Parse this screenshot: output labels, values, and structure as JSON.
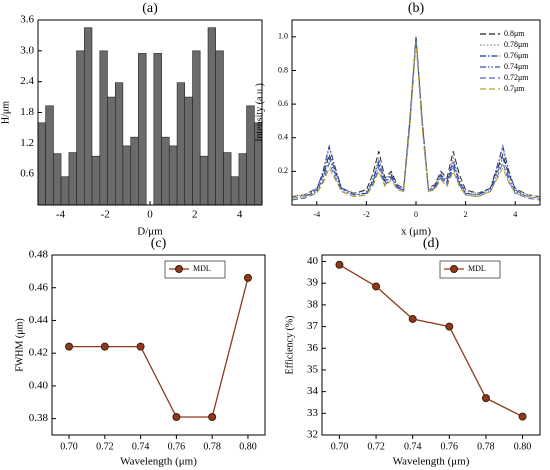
{
  "chart_data": [
    {
      "type": "histogram",
      "title": "(a)",
      "x_label": "D/μm",
      "y_label": "H/μm",
      "color": "#6b6b6b",
      "bins": [
        -5,
        -4.66,
        -4.31,
        -3.97,
        -3.62,
        -3.28,
        -2.93,
        -2.59,
        -2.24,
        -1.9,
        -1.55,
        -1.21,
        -0.86,
        -0.52,
        -0.17,
        0.17,
        0.52,
        0.86,
        1.21,
        1.55,
        1.9,
        2.24,
        2.59,
        2.93,
        3.28,
        3.62,
        3.97,
        4.31,
        4.66,
        5
      ],
      "values": [
        1.6,
        1.93,
        1.0,
        0.55,
        1.02,
        3.0,
        3.45,
        0.95,
        3.0,
        2.1,
        2.38,
        1.15,
        1.32,
        2.95,
        0,
        2.95,
        1.32,
        1.15,
        2.38,
        2.1,
        3.0,
        0.95,
        3.45,
        3.0,
        1.02,
        0.55,
        1.0,
        1.93,
        1.6
      ],
      "xlim": [
        -5,
        5
      ],
      "xticks": [
        -4,
        -2,
        0,
        2,
        4
      ],
      "ylim": [
        0,
        3.6
      ],
      "yticks": [
        0.6,
        1.2,
        1.8,
        2.4,
        {
          "value": 3,
          "label": "3.0"
        },
        3.6
      ]
    },
    {
      "type": "line",
      "title": "(b)",
      "x_label": "x (μm)",
      "y_label": "Intensity (a.u.)",
      "legend": "upper right",
      "x": [
        -5,
        -4.5,
        -4,
        -3.75,
        -3.5,
        -3.25,
        -3,
        -2.5,
        -2,
        -1.75,
        -1.5,
        -1.25,
        -1,
        -0.75,
        -0.5,
        -0.25,
        0,
        0.25,
        0.5,
        0.75,
        1,
        1.25,
        1.5,
        1.75,
        2,
        2.5,
        3,
        3.25,
        3.5,
        3.75,
        4,
        4.5,
        5
      ],
      "series": [
        {
          "name": "0.8μm",
          "color": "#222222",
          "dash": "dashed",
          "values": [
            0.05,
            0.06,
            0.1,
            0.18,
            0.3,
            0.2,
            0.1,
            0.07,
            0.09,
            0.18,
            0.32,
            0.16,
            0.2,
            0.12,
            0.1,
            0.5,
            1.0,
            0.5,
            0.1,
            0.12,
            0.2,
            0.16,
            0.32,
            0.18,
            0.09,
            0.07,
            0.1,
            0.2,
            0.3,
            0.18,
            0.1,
            0.06,
            0.05
          ]
        },
        {
          "name": "0.78μm",
          "color": "#888888",
          "dash": "dotted",
          "values": [
            0.05,
            0.06,
            0.1,
            0.19,
            0.34,
            0.2,
            0.1,
            0.07,
            0.08,
            0.15,
            0.28,
            0.15,
            0.19,
            0.12,
            0.1,
            0.52,
            1.0,
            0.52,
            0.1,
            0.12,
            0.19,
            0.15,
            0.28,
            0.15,
            0.08,
            0.07,
            0.1,
            0.2,
            0.34,
            0.19,
            0.1,
            0.06,
            0.05
          ]
        },
        {
          "name": "0.76μm",
          "color": "#2233aa",
          "dash": "dashdot",
          "values": [
            0.04,
            0.05,
            0.09,
            0.2,
            0.35,
            0.22,
            0.1,
            0.06,
            0.07,
            0.14,
            0.26,
            0.14,
            0.18,
            0.11,
            0.09,
            0.5,
            1.0,
            0.5,
            0.09,
            0.11,
            0.18,
            0.14,
            0.26,
            0.14,
            0.07,
            0.06,
            0.1,
            0.22,
            0.35,
            0.2,
            0.09,
            0.05,
            0.04
          ]
        },
        {
          "name": "0.74μm",
          "color": "#3355aa",
          "dash": "dashdotdot",
          "values": [
            0.04,
            0.05,
            0.08,
            0.16,
            0.28,
            0.18,
            0.09,
            0.06,
            0.07,
            0.13,
            0.24,
            0.13,
            0.17,
            0.1,
            0.09,
            0.48,
            0.99,
            0.48,
            0.09,
            0.1,
            0.17,
            0.13,
            0.24,
            0.13,
            0.07,
            0.06,
            0.09,
            0.18,
            0.28,
            0.16,
            0.08,
            0.05,
            0.04
          ]
        },
        {
          "name": "0.72μm",
          "color": "#4466cc",
          "dash": "dashed",
          "values": [
            0.03,
            0.04,
            0.07,
            0.14,
            0.25,
            0.16,
            0.08,
            0.05,
            0.06,
            0.12,
            0.22,
            0.12,
            0.16,
            0.1,
            0.08,
            0.47,
            0.98,
            0.47,
            0.08,
            0.1,
            0.16,
            0.12,
            0.22,
            0.12,
            0.06,
            0.05,
            0.08,
            0.16,
            0.25,
            0.14,
            0.07,
            0.04,
            0.03
          ]
        },
        {
          "name": "0.7μm",
          "color": "#b8a020",
          "dash": "dashed",
          "values": [
            0.04,
            0.05,
            0.07,
            0.13,
            0.22,
            0.15,
            0.08,
            0.05,
            0.06,
            0.11,
            0.2,
            0.11,
            0.15,
            0.09,
            0.08,
            0.46,
            0.97,
            0.46,
            0.08,
            0.09,
            0.15,
            0.11,
            0.2,
            0.11,
            0.06,
            0.05,
            0.08,
            0.15,
            0.22,
            0.13,
            0.07,
            0.05,
            0.04
          ]
        }
      ],
      "xlim": [
        -5,
        5
      ],
      "xticks": [
        -4,
        -2,
        0,
        2,
        4
      ],
      "ylim": [
        0,
        1.1
      ],
      "yticks": [
        0.2,
        0.4,
        0.6,
        0.8,
        {
          "value": 1,
          "label": "1.0"
        }
      ]
    },
    {
      "type": "line",
      "title": "(c)",
      "x_label": "Wavelength (μm)",
      "y_label": "FWHM (μm)",
      "legend": "upper right",
      "marker": "circle",
      "categories": [
        "0.70",
        "0.72",
        "0.74",
        "0.76",
        "0.78",
        "0.80"
      ],
      "series": [
        {
          "name": "MDL",
          "color": "#8b3a1a",
          "values": [
            0.424,
            0.424,
            0.424,
            0.381,
            0.381,
            0.466
          ]
        }
      ],
      "ylim": [
        0.37,
        0.48
      ],
      "yticks": [
        0.38,
        {
          "value": 0.4,
          "label": "0.40"
        },
        0.42,
        0.44,
        0.46,
        0.48
      ]
    },
    {
      "type": "line",
      "title": "(d)",
      "x_label": "Wavelength (μm)",
      "y_label": "Efficiency (%)",
      "legend": "upper right",
      "marker": "circle",
      "categories": [
        "0.70",
        "0.72",
        "0.74",
        "0.76",
        "0.78",
        "0.80"
      ],
      "series": [
        {
          "name": "MDL",
          "color": "#8b3a1a",
          "values": [
            39.85,
            38.85,
            37.35,
            37.0,
            33.7,
            32.85
          ]
        }
      ],
      "ylim": [
        32,
        40.3
      ],
      "yticks": [
        32,
        33,
        34,
        35,
        36,
        37,
        38,
        39,
        40
      ]
    }
  ]
}
